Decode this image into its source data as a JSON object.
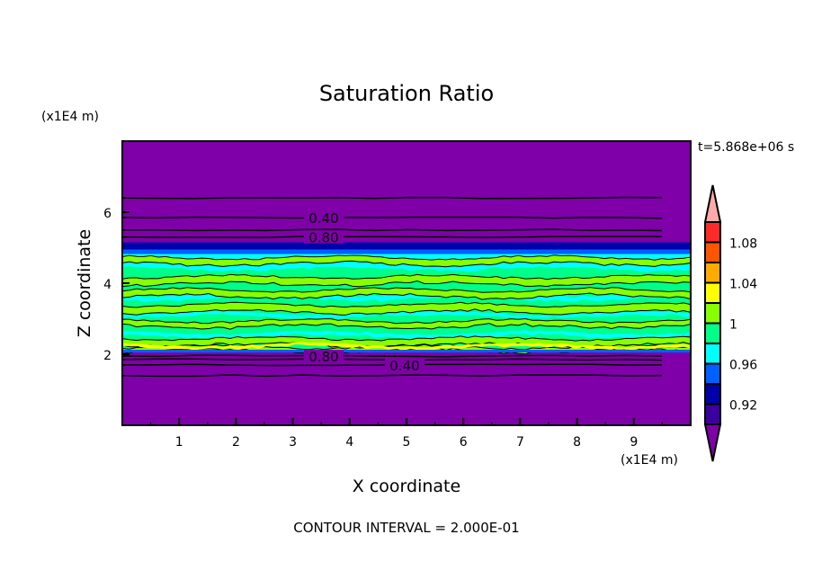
{
  "chart_data": {
    "type": "heatmap",
    "title": "Saturation Ratio",
    "xlabel": "X coordinate",
    "ylabel": "Z coordinate",
    "x_unit": "(x1E4 m)",
    "y_unit": "(x1E4 m)",
    "xlim": [
      0,
      10
    ],
    "ylim": [
      0,
      8
    ],
    "x_ticks": [
      1,
      2,
      3,
      4,
      5,
      6,
      7,
      8,
      9
    ],
    "y_ticks": [
      2,
      4,
      6
    ],
    "time_label": "t=5.868e+06 s",
    "footer": "CONTOUR INTERVAL = 2.000E-01",
    "contour_labels": [
      {
        "text": "0.40",
        "z": 5.85
      },
      {
        "text": "0.80",
        "z": 5.3
      },
      {
        "text": "0.80",
        "z": 1.95
      },
      {
        "text": "0.40",
        "z": 1.7
      }
    ],
    "contour_lines_z": [
      6.4,
      5.85,
      5.5,
      5.3,
      1.95,
      1.85,
      1.7,
      1.4
    ],
    "cloud_layer_z": [
      2.05,
      5.0
    ],
    "colorbar": {
      "levels": [
        0.9,
        0.92,
        0.94,
        0.96,
        0.98,
        1.0,
        1.02,
        1.04,
        1.06,
        1.08,
        1.1
      ],
      "tick_labels": [
        "0.92",
        "0.96",
        "1",
        "1.04",
        "1.08"
      ],
      "tick_values": [
        0.92,
        0.96,
        1.0,
        1.04,
        1.08
      ],
      "colors": [
        "#3a00a0",
        "#0000aa",
        "#0060ff",
        "#00ffff",
        "#00ff88",
        "#88ff00",
        "#ffff00",
        "#ffaa00",
        "#ff5500",
        "#ff2a2a"
      ],
      "under_color": "#7f00a8",
      "over_color": "#ffaaaa"
    }
  }
}
